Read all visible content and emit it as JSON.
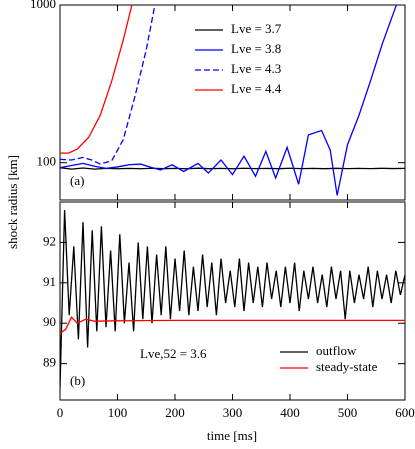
{
  "chart_data": [
    {
      "type": "line",
      "panel_label": "(a)",
      "ylabel": "shock radius [km]",
      "log_y": true,
      "xlim": [
        0,
        600
      ],
      "xticks": [
        0,
        100,
        200,
        300,
        400,
        500,
        600
      ],
      "ylim": [
        58,
        1000
      ],
      "yticks": [
        100,
        1000
      ],
      "series": [
        {
          "name": "Lve = 3.7",
          "color": "#000000",
          "dash": false,
          "x": [
            0,
            20,
            40,
            60,
            80,
            100,
            120,
            140,
            160,
            180,
            200,
            220,
            240,
            260,
            280,
            300,
            320,
            340,
            360,
            380,
            400,
            420,
            440,
            460,
            480,
            500,
            520,
            540,
            560,
            580,
            600
          ],
          "y": [
            93,
            91,
            92.5,
            91,
            92,
            91.5,
            92,
            91.5,
            92.2,
            91.6,
            92,
            91.5,
            92.3,
            91.6,
            92,
            91.5,
            92.2,
            91.7,
            92,
            91.6,
            92.2,
            91.7,
            92,
            91.6,
            92.1,
            91.7,
            92,
            91.7,
            92.1,
            91.8,
            92
          ]
        },
        {
          "name": "Lve = 3.8",
          "color": "#0000ff",
          "dash": false,
          "x": [
            0,
            20,
            40,
            60,
            80,
            100,
            120,
            140,
            160,
            175,
            195,
            215,
            240,
            258,
            280,
            300,
            320,
            340,
            358,
            375,
            395,
            415,
            432,
            455,
            470,
            482,
            500,
            520,
            540,
            560,
            585
          ],
          "y": [
            93,
            96,
            99,
            95,
            92,
            94,
            97,
            98,
            93,
            90,
            97,
            88,
            99,
            86,
            104,
            84,
            110,
            82,
            118,
            80,
            125,
            73,
            150,
            160,
            120,
            62,
            130,
            200,
            330,
            560,
            1000
          ]
        },
        {
          "name": "Lve = 4.3",
          "color": "#0000ff",
          "dash": true,
          "x": [
            0,
            20,
            40,
            55,
            70,
            90,
            110,
            130,
            150,
            165
          ],
          "y": [
            105,
            104,
            108,
            104,
            98,
            103,
            140,
            260,
            520,
            1000
          ]
        },
        {
          "name": "Lve = 4.4",
          "color": "#ff0000",
          "dash": false,
          "x": [
            0,
            15,
            30,
            50,
            70,
            90,
            110,
            125
          ],
          "y": [
            115,
            115,
            122,
            145,
            200,
            330,
            600,
            1000
          ]
        }
      ]
    },
    {
      "type": "line",
      "panel_label": "(b)",
      "xlabel": "time [ms]",
      "annotation": "Lve,52 = 3.6",
      "xlim": [
        0,
        600
      ],
      "xticks": [
        0,
        100,
        200,
        300,
        400,
        500,
        600
      ],
      "ylim": [
        88.1,
        93.0
      ],
      "yticks": [
        89,
        90,
        91,
        92
      ],
      "series": [
        {
          "name": "outflow",
          "color": "#000000",
          "dash": false,
          "x": [
            0,
            8,
            16,
            24,
            32,
            40,
            48,
            56,
            64,
            72,
            80,
            88,
            96,
            104,
            112,
            120,
            128,
            136,
            144,
            152,
            160,
            168,
            176,
            184,
            192,
            200,
            208,
            216,
            224,
            232,
            240,
            248,
            256,
            264,
            272,
            280,
            288,
            296,
            304,
            312,
            320,
            328,
            336,
            344,
            352,
            360,
            368,
            376,
            384,
            392,
            400,
            408,
            416,
            424,
            432,
            440,
            448,
            456,
            464,
            472,
            480,
            488,
            496,
            504,
            512,
            520,
            528,
            536,
            544,
            552,
            560,
            568,
            576,
            584,
            592,
            600
          ],
          "y": [
            88.4,
            92.8,
            90.2,
            91.9,
            89.6,
            92.5,
            89.4,
            92.3,
            89.8,
            92.4,
            89.9,
            91.8,
            89.8,
            92.2,
            90.0,
            91.5,
            89.8,
            92.0,
            90.1,
            91.9,
            90.0,
            91.7,
            90.2,
            91.9,
            90.1,
            91.6,
            90.3,
            91.8,
            90.2,
            91.4,
            90.3,
            91.7,
            90.4,
            91.5,
            90.2,
            91.6,
            90.5,
            91.3,
            90.4,
            91.6,
            90.3,
            91.5,
            90.5,
            91.4,
            90.4,
            91.5,
            90.6,
            91.3,
            90.4,
            91.4,
            90.5,
            91.5,
            90.3,
            91.3,
            90.6,
            91.4,
            90.5,
            91.2,
            90.4,
            91.4,
            90.6,
            91.3,
            90.1,
            91.3,
            90.5,
            91.2,
            90.6,
            91.4,
            90.4,
            91.3,
            90.6,
            91.2,
            90.5,
            91.3,
            90.7,
            91.2
          ]
        },
        {
          "name": "steady-state",
          "color": "#ff0000",
          "dash": false,
          "x": [
            0,
            10,
            20,
            30,
            45,
            60,
            100,
            200,
            300,
            400,
            500,
            600
          ],
          "y": [
            89.75,
            89.85,
            90.15,
            90.0,
            90.1,
            90.05,
            90.06,
            90.07,
            90.07,
            90.07,
            90.07,
            90.07
          ]
        }
      ]
    }
  ]
}
